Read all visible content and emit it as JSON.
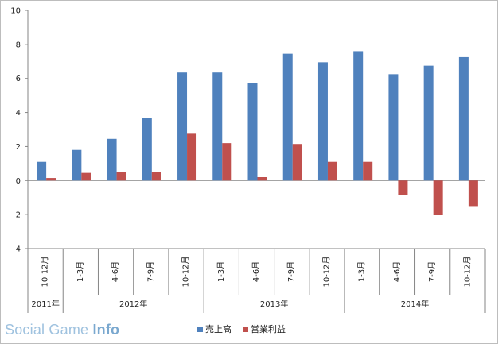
{
  "chart_data": {
    "type": "bar",
    "categories": [
      "10-12月",
      "1-3月",
      "4-6月",
      "7-9月",
      "10-12月",
      "1-3月",
      "4-6月",
      "7-9月",
      "10-12月",
      "1-3月",
      "4-6月",
      "7-9月",
      "10-12月"
    ],
    "year_groups": [
      {
        "label": "2011年",
        "count": 1
      },
      {
        "label": "2012年",
        "count": 4
      },
      {
        "label": "2013年",
        "count": 4
      },
      {
        "label": "2014年",
        "count": 4
      }
    ],
    "series": [
      {
        "name": "売上高",
        "color": "#4f81bd",
        "values": [
          1.1,
          1.8,
          2.45,
          3.7,
          6.35,
          6.35,
          5.75,
          7.45,
          6.95,
          7.6,
          6.25,
          6.75,
          7.25
        ]
      },
      {
        "name": "営業利益",
        "color": "#c0504d",
        "values": [
          0.15,
          0.45,
          0.5,
          0.5,
          2.75,
          2.2,
          0.2,
          2.15,
          1.1,
          1.1,
          -0.85,
          -2.0,
          -1.5
        ]
      }
    ],
    "ylim": [
      -4,
      10
    ],
    "yticks": [
      "10",
      "8",
      "6",
      "4",
      "2",
      "0",
      "-2",
      "-4"
    ],
    "ytick_values": [
      10,
      8,
      6,
      4,
      2,
      0,
      -2,
      -4
    ],
    "grid": false,
    "legend": "bottom"
  },
  "watermark": {
    "part1": "Social Game ",
    "part2": "Info"
  }
}
